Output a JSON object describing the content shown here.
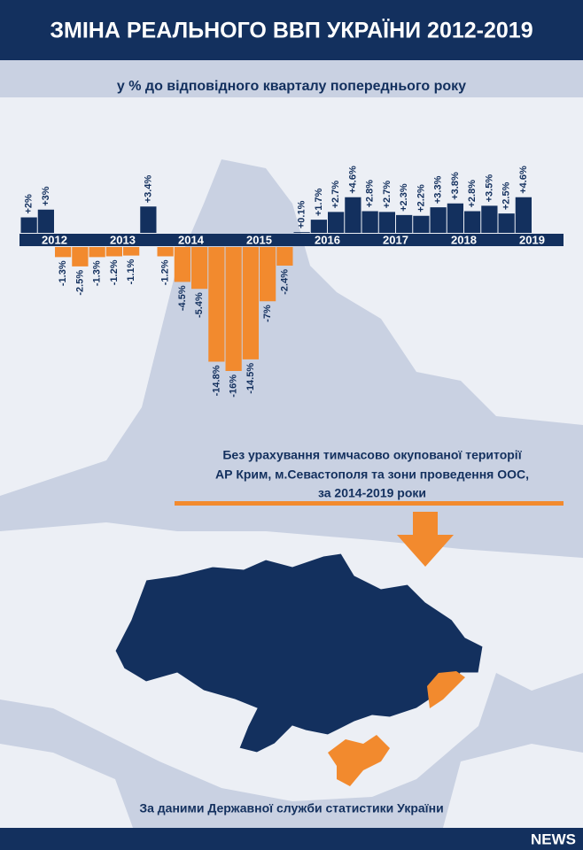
{
  "chart_data": {
    "type": "bar",
    "title": "ЗМІНА РЕАЛЬНОГО ВВП УКРАЇНИ 2012-2019",
    "subtitle": "у % до відповідного кварталу попереднього року",
    "years": [
      "2012",
      "2013",
      "2014",
      "2015",
      "2016",
      "2017",
      "2018",
      "2019"
    ],
    "values": [
      2,
      3,
      -1.3,
      -2.5,
      -1.3,
      -1.2,
      -1.1,
      3.4,
      -1.2,
      -4.5,
      -5.4,
      -14.8,
      -16,
      -14.5,
      -7,
      -2.4,
      0.1,
      1.7,
      2.7,
      4.6,
      2.8,
      2.7,
      2.3,
      2.2,
      3.3,
      3.8,
      2.8,
      3.5,
      2.5,
      4.6
    ],
    "value_labels": [
      "+2%",
      "+3%",
      "-1.3%",
      "-2.5%",
      "-1.3%",
      "-1.2%",
      "-1.1%",
      "+3.4%",
      "-1.2%",
      "-4.5%",
      "-5.4%",
      "-14.8%",
      "-16%",
      "-14.5%",
      "-7%",
      "-2.4%",
      "+0.1%",
      "+1.7%",
      "+2.7%",
      "+4.6%",
      "+2.8%",
      "+2.7%",
      "+2.3%",
      "+2.2%",
      "+3.3%",
      "+3.8%",
      "+2.8%",
      "+3.5%",
      "+2.5%",
      "+4.6%"
    ],
    "positive_color": "#13305e",
    "negative_color": "#f28a2e",
    "note": [
      "Без урахування тимчасово окупованої території",
      "АР Крим, м.Севастополя та зони проведення ООС,",
      "за 2014-2019 роки"
    ],
    "source": "За даними Державної служби статистики України",
    "logo": "NEWS"
  }
}
